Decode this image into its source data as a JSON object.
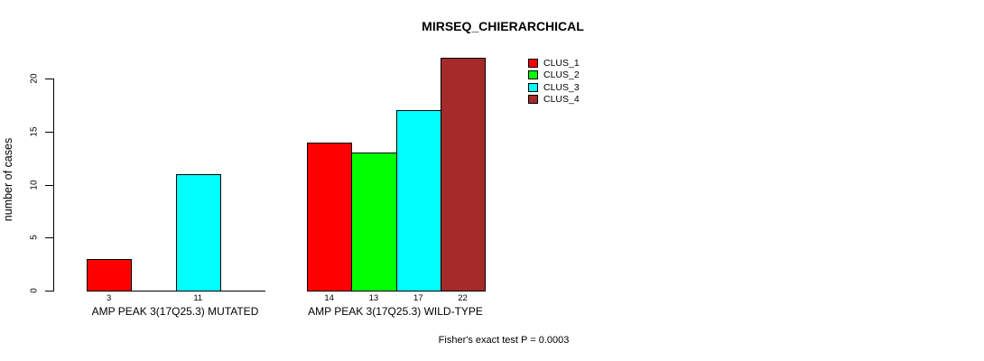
{
  "chart_data": {
    "type": "bar",
    "title": "MIRSEQ_CHIERARCHICAL",
    "xlabel": "",
    "ylabel": "number of cases",
    "ylim": [
      0,
      22
    ],
    "yticks": [
      0,
      5,
      10,
      15,
      20
    ],
    "grid": false,
    "legend_position": "top-right",
    "footnote": "Fisher's exact test P = 0.0003",
    "legend": [
      {
        "name": "CLUS_1",
        "color": "#FF0000"
      },
      {
        "name": "CLUS_2",
        "color": "#00FF00"
      },
      {
        "name": "CLUS_3",
        "color": "#00FFFF"
      },
      {
        "name": "CLUS_4",
        "color": "#A52A2A"
      }
    ],
    "groups": [
      {
        "label": "AMP PEAK 3(17Q25.3) MUTATED",
        "bars": [
          {
            "series": "CLUS_1",
            "value": 3,
            "label": "3",
            "color": "#FF0000"
          },
          {
            "series": "CLUS_2",
            "value": 0,
            "label": "",
            "color": "#00FF00"
          },
          {
            "series": "CLUS_3",
            "value": 11,
            "label": "11",
            "color": "#00FFFF"
          },
          {
            "series": "CLUS_4",
            "value": 0,
            "label": "",
            "color": "#A52A2A"
          }
        ]
      },
      {
        "label": "AMP PEAK 3(17Q25.3) WILD-TYPE",
        "bars": [
          {
            "series": "CLUS_1",
            "value": 14,
            "label": "14",
            "color": "#FF0000"
          },
          {
            "series": "CLUS_2",
            "value": 13,
            "label": "13",
            "color": "#00FF00"
          },
          {
            "series": "CLUS_3",
            "value": 17,
            "label": "17",
            "color": "#00FFFF"
          },
          {
            "series": "CLUS_4",
            "value": 22,
            "label": "22",
            "color": "#A52A2A"
          }
        ]
      }
    ]
  }
}
